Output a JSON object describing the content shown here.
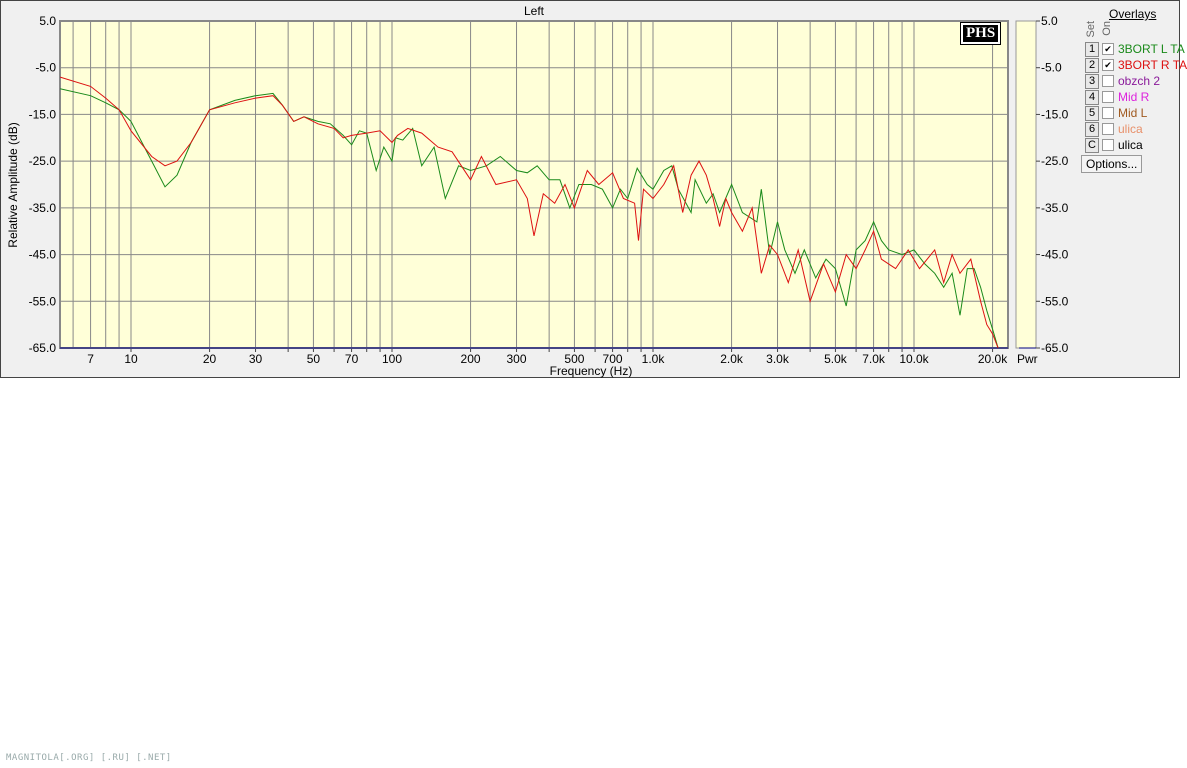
{
  "window": {
    "title": "Left",
    "logo": "PHS",
    "watermark": "MAGNITOLA[.ORG] [.RU] [.NET]"
  },
  "overlays": {
    "title": "Overlays",
    "set_label": "Set",
    "on_label": "On",
    "items": [
      {
        "set": "1",
        "checked": true,
        "label": "3BORT L TA",
        "color": "#1a8a1a"
      },
      {
        "set": "2",
        "checked": true,
        "label": "3BORT R TA",
        "color": "#dd1111"
      },
      {
        "set": "3",
        "checked": false,
        "label": "obzch 2",
        "color": "#8a1a9a"
      },
      {
        "set": "4",
        "checked": false,
        "label": "Mid R",
        "color": "#dd22dd"
      },
      {
        "set": "5",
        "checked": false,
        "label": "Mid L",
        "color": "#a05a20"
      },
      {
        "set": "6",
        "checked": false,
        "label": "ulica",
        "color": "#e8906a"
      },
      {
        "set": "C",
        "checked": false,
        "label": "ulica",
        "color": "#000000"
      }
    ],
    "options_label": "Options..."
  },
  "chart_data": {
    "type": "line",
    "title": "Left",
    "xlabel": "Frequency (Hz)",
    "ylabel": "Relative Amplitude (dB)",
    "x_scale": "log",
    "xlim": [
      5.35,
      22700
    ],
    "ylim": [
      -65,
      5
    ],
    "grid": true,
    "xticks": [
      7,
      10,
      20,
      30,
      50,
      70,
      100,
      200,
      300,
      500,
      700,
      1000,
      2000,
      3000,
      5000,
      7000,
      10000,
      20000
    ],
    "xtick_labels": [
      "7",
      "10",
      "20",
      "30",
      "50",
      "70",
      "100",
      "200",
      "300",
      "500",
      "700",
      "1.0k",
      "2.0k",
      "3.0k",
      "5.0k",
      "7.0k",
      "10.0k",
      "20.0k"
    ],
    "yticks": [
      5,
      -5,
      -15,
      -25,
      -35,
      -45,
      -55,
      -65
    ],
    "ytick_labels": [
      "5.0",
      "-5.0",
      "-15.0",
      "-25.0",
      "-35.0",
      "-45.0",
      "-55.0",
      "-65.0"
    ],
    "right_axis_label": "Pwr",
    "background": "#ffffd8",
    "series": [
      {
        "name": "3BORT L TA",
        "color": "#1a8a1a",
        "points": [
          [
            5.35,
            -9.5
          ],
          [
            7,
            -11
          ],
          [
            8,
            -12.5
          ],
          [
            9,
            -14
          ],
          [
            10,
            -16.5
          ],
          [
            12,
            -25
          ],
          [
            13.5,
            -30.5
          ],
          [
            15,
            -28
          ],
          [
            17,
            -21
          ],
          [
            20,
            -14
          ],
          [
            25,
            -12
          ],
          [
            30,
            -11
          ],
          [
            35,
            -10.5
          ],
          [
            38,
            -13
          ],
          [
            42,
            -16.5
          ],
          [
            46,
            -15.5
          ],
          [
            52,
            -16.5
          ],
          [
            58,
            -17
          ],
          [
            65,
            -19.5
          ],
          [
            70,
            -21.5
          ],
          [
            75,
            -18.5
          ],
          [
            80,
            -19
          ],
          [
            87,
            -27
          ],
          [
            93,
            -22
          ],
          [
            100,
            -25
          ],
          [
            103,
            -20
          ],
          [
            110,
            -20.5
          ],
          [
            120,
            -18
          ],
          [
            130,
            -26
          ],
          [
            145,
            -22
          ],
          [
            160,
            -33
          ],
          [
            180,
            -26
          ],
          [
            200,
            -27
          ],
          [
            230,
            -26
          ],
          [
            260,
            -24
          ],
          [
            300,
            -27
          ],
          [
            330,
            -27.5
          ],
          [
            360,
            -26
          ],
          [
            400,
            -29
          ],
          [
            440,
            -29
          ],
          [
            480,
            -35
          ],
          [
            520,
            -30
          ],
          [
            580,
            -30
          ],
          [
            640,
            -31
          ],
          [
            700,
            -35
          ],
          [
            750,
            -31
          ],
          [
            800,
            -33
          ],
          [
            870,
            -26.5
          ],
          [
            950,
            -30
          ],
          [
            1000,
            -31
          ],
          [
            1100,
            -27
          ],
          [
            1180,
            -26
          ],
          [
            1250,
            -31
          ],
          [
            1400,
            -36
          ],
          [
            1450,
            -29
          ],
          [
            1600,
            -34
          ],
          [
            1700,
            -32
          ],
          [
            1800,
            -36
          ],
          [
            2000,
            -30
          ],
          [
            2200,
            -36
          ],
          [
            2500,
            -38
          ],
          [
            2600,
            -31
          ],
          [
            2800,
            -45
          ],
          [
            3000,
            -38
          ],
          [
            3200,
            -44
          ],
          [
            3500,
            -49
          ],
          [
            3800,
            -44
          ],
          [
            4200,
            -50
          ],
          [
            4600,
            -46
          ],
          [
            5000,
            -48
          ],
          [
            5500,
            -56
          ],
          [
            6000,
            -44
          ],
          [
            6500,
            -42
          ],
          [
            7000,
            -38
          ],
          [
            7500,
            -42
          ],
          [
            8000,
            -44
          ],
          [
            9000,
            -45
          ],
          [
            10000,
            -44
          ],
          [
            11000,
            -47
          ],
          [
            12000,
            -49
          ],
          [
            13000,
            -52
          ],
          [
            14000,
            -49
          ],
          [
            15000,
            -58
          ],
          [
            16000,
            -48
          ],
          [
            17000,
            -48
          ],
          [
            18000,
            -52
          ],
          [
            19000,
            -57
          ],
          [
            20000,
            -61
          ],
          [
            21000,
            -65
          ]
        ]
      },
      {
        "name": "3BORT R TA",
        "color": "#dd1111",
        "points": [
          [
            5.35,
            -7
          ],
          [
            7,
            -9
          ],
          [
            8,
            -11.5
          ],
          [
            9,
            -14
          ],
          [
            10,
            -18.5
          ],
          [
            12,
            -24
          ],
          [
            13.5,
            -26
          ],
          [
            15,
            -25
          ],
          [
            17,
            -21
          ],
          [
            20,
            -14
          ],
          [
            25,
            -12.5
          ],
          [
            30,
            -11.5
          ],
          [
            35,
            -11
          ],
          [
            38,
            -13
          ],
          [
            42,
            -16.5
          ],
          [
            46,
            -15.5
          ],
          [
            52,
            -17
          ],
          [
            60,
            -18
          ],
          [
            65,
            -20
          ],
          [
            70,
            -19.5
          ],
          [
            80,
            -19
          ],
          [
            90,
            -18.5
          ],
          [
            100,
            -21
          ],
          [
            105,
            -19.5
          ],
          [
            115,
            -18
          ],
          [
            130,
            -19
          ],
          [
            150,
            -22
          ],
          [
            170,
            -23
          ],
          [
            200,
            -29
          ],
          [
            220,
            -24
          ],
          [
            250,
            -30
          ],
          [
            300,
            -29
          ],
          [
            330,
            -33
          ],
          [
            350,
            -41
          ],
          [
            380,
            -32
          ],
          [
            420,
            -34
          ],
          [
            460,
            -30
          ],
          [
            500,
            -35
          ],
          [
            560,
            -27
          ],
          [
            620,
            -30
          ],
          [
            700,
            -27.5
          ],
          [
            770,
            -33
          ],
          [
            850,
            -34
          ],
          [
            880,
            -42
          ],
          [
            920,
            -31
          ],
          [
            1000,
            -33
          ],
          [
            1100,
            -30
          ],
          [
            1200,
            -26
          ],
          [
            1300,
            -36
          ],
          [
            1400,
            -28
          ],
          [
            1500,
            -25
          ],
          [
            1600,
            -28
          ],
          [
            1700,
            -33
          ],
          [
            1800,
            -39
          ],
          [
            1900,
            -33
          ],
          [
            2000,
            -36
          ],
          [
            2200,
            -40
          ],
          [
            2400,
            -35
          ],
          [
            2600,
            -49
          ],
          [
            2800,
            -43
          ],
          [
            3000,
            -45
          ],
          [
            3300,
            -51
          ],
          [
            3600,
            -44
          ],
          [
            4000,
            -55
          ],
          [
            4500,
            -47
          ],
          [
            5000,
            -53
          ],
          [
            5500,
            -45
          ],
          [
            6000,
            -48
          ],
          [
            6500,
            -44
          ],
          [
            7000,
            -40
          ],
          [
            7500,
            -46
          ],
          [
            8500,
            -48
          ],
          [
            9500,
            -44
          ],
          [
            10500,
            -48
          ],
          [
            12000,
            -44
          ],
          [
            13000,
            -51
          ],
          [
            14000,
            -45
          ],
          [
            15000,
            -49
          ],
          [
            16500,
            -46
          ],
          [
            18000,
            -55
          ],
          [
            19000,
            -60
          ],
          [
            20000,
            -62
          ],
          [
            21000,
            -65
          ]
        ]
      }
    ]
  }
}
